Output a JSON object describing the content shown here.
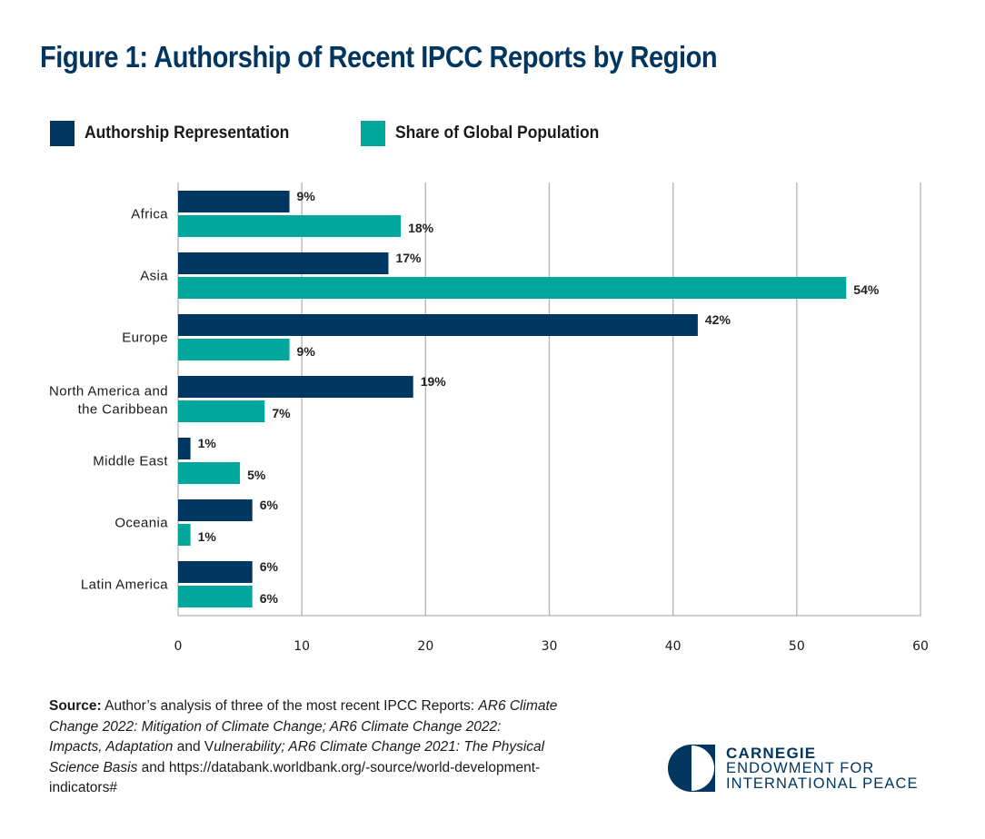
{
  "title": "Figure 1: Authorship of Recent IPCC Reports by Region",
  "colors": {
    "title": "#003660",
    "authorship": "#00365F",
    "population": "#00A79D",
    "grid": "#b3b3b3",
    "logo": "#003660"
  },
  "legend": [
    {
      "label": "Authorship Representation",
      "color": "#00365F"
    },
    {
      "label": "Share of Global Population",
      "color": "#00A79D"
    }
  ],
  "chart_data": {
    "type": "bar",
    "orientation": "horizontal",
    "title": "Figure 1: Authorship of Recent IPCC Reports by Region",
    "xlabel": "",
    "ylabel": "",
    "xlim": [
      0,
      60
    ],
    "xticks": [
      0,
      10,
      20,
      30,
      40,
      50,
      60
    ],
    "xtick_labels": [
      "0",
      "10",
      "20",
      "30",
      "40",
      "50",
      "60"
    ],
    "grid": true,
    "legend_position": "top-left",
    "categories": [
      [
        "Africa"
      ],
      [
        "Asia"
      ],
      [
        "Europe"
      ],
      [
        "North America and",
        "the Caribbean"
      ],
      [
        "Middle East"
      ],
      [
        "Oceania"
      ],
      [
        "Latin America"
      ]
    ],
    "series": [
      {
        "name": "Authorship Representation",
        "color": "#00365F",
        "values": [
          9,
          17,
          42,
          19,
          1,
          6,
          6
        ],
        "labels": [
          "9%",
          "17%",
          "42%",
          "19%",
          "1%",
          "6%",
          "6%"
        ]
      },
      {
        "name": "Share of Global Population",
        "color": "#00A79D",
        "values": [
          18,
          54,
          9,
          7,
          5,
          1,
          6
        ],
        "labels": [
          "18%",
          "54%",
          "9%",
          "7%",
          "5%",
          "1%",
          "6%"
        ]
      }
    ]
  },
  "source": {
    "lead": "Source:",
    "text1": " Author’s analysis of three of the most recent IPCC Reports: ",
    "italic1": "AR6 Climate Change 2022: Mitigation of Climate Change; AR6 Climate Change 2022: Impacts, Adaptation",
    "text2": " and V",
    "italic2": "ulnerability; AR6 Climate Change 2021: The Physical Science Basis",
    "text3": " and https://databank.worldbank.org/-source/world-development-indicators#"
  },
  "logo": {
    "line1": "CARNEGIE",
    "line2": "ENDOWMENT FOR",
    "line3": "INTERNATIONAL PEACE"
  }
}
